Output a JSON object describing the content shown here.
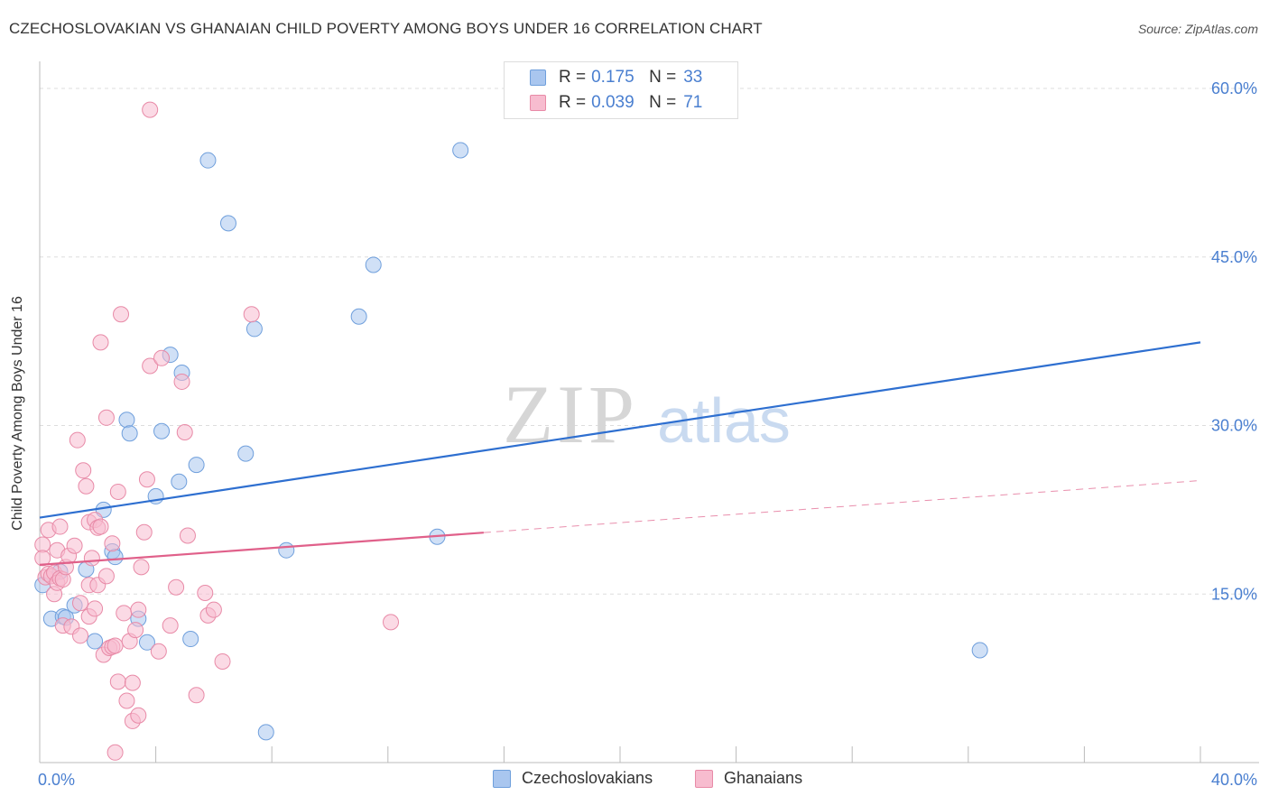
{
  "header": {
    "title": "CZECHOSLOVAKIAN VS GHANAIAN CHILD POVERTY AMONG BOYS UNDER 16 CORRELATION CHART",
    "source": "Source: ZipAtlas.com"
  },
  "watermark": {
    "zip": "ZIP",
    "atlas": "atlas"
  },
  "legend": {
    "rows": [
      {
        "r_label": "R =",
        "r_value": "0.175",
        "n_label": "N =",
        "n_value": "33",
        "color": "#a9c6ef",
        "border": "#6f9fdc"
      },
      {
        "r_label": "R =",
        "r_value": "0.039",
        "n_label": "N =",
        "n_value": "71",
        "color": "#f7bccf",
        "border": "#e88aa7"
      }
    ]
  },
  "bottom_legend": {
    "items": [
      {
        "label": "Czechoslovakians",
        "color": "#a9c6ef",
        "border": "#6f9fdc"
      },
      {
        "label": "Ghanaians",
        "color": "#f7bccf",
        "border": "#e88aa7"
      }
    ]
  },
  "chart_data": {
    "type": "scatter",
    "title": "CZECHOSLOVAKIAN VS GHANAIAN CHILD POVERTY AMONG BOYS UNDER 16 CORRELATION CHART",
    "xlabel": "",
    "ylabel": "Child Poverty Among Boys Under 16",
    "xlim": [
      0,
      40
    ],
    "ylim": [
      0,
      60
    ],
    "x_tick_labels": [
      {
        "value": 0,
        "label": "0.0%"
      },
      {
        "value": 40,
        "label": "40.0%"
      }
    ],
    "y_tick_labels": [
      {
        "value": 15,
        "label": "15.0%"
      },
      {
        "value": 30,
        "label": "30.0%"
      },
      {
        "value": 45,
        "label": "45.0%"
      },
      {
        "value": 60,
        "label": "60.0%"
      }
    ],
    "grid": true,
    "legend_position": "top-center",
    "series": [
      {
        "name": "Czechoslovakians",
        "color": "#6f9fdc",
        "fill": "#a9c6ef",
        "trend": {
          "x": [
            0,
            40
          ],
          "y": [
            21.8,
            37.4
          ],
          "dashed_from": null,
          "line_color": "#2e6fd0"
        },
        "points": [
          [
            0.1,
            15.8
          ],
          [
            0.4,
            12.8
          ],
          [
            0.7,
            17.0
          ],
          [
            0.8,
            13.0
          ],
          [
            0.9,
            12.9
          ],
          [
            1.2,
            14.0
          ],
          [
            1.6,
            17.2
          ],
          [
            1.9,
            10.8
          ],
          [
            2.2,
            22.5
          ],
          [
            2.5,
            18.8
          ],
          [
            2.6,
            18.3
          ],
          [
            3.0,
            30.5
          ],
          [
            3.1,
            29.3
          ],
          [
            3.4,
            12.8
          ],
          [
            3.7,
            10.7
          ],
          [
            4.0,
            23.7
          ],
          [
            4.2,
            29.5
          ],
          [
            4.5,
            36.3
          ],
          [
            4.8,
            25.0
          ],
          [
            4.9,
            34.7
          ],
          [
            5.2,
            11.0
          ],
          [
            5.4,
            26.5
          ],
          [
            5.8,
            53.6
          ],
          [
            6.5,
            48.0
          ],
          [
            7.1,
            27.5
          ],
          [
            7.4,
            38.6
          ],
          [
            7.8,
            2.7
          ],
          [
            8.5,
            18.9
          ],
          [
            11.0,
            39.7
          ],
          [
            11.5,
            44.3
          ],
          [
            13.7,
            20.1
          ],
          [
            14.5,
            54.5
          ],
          [
            32.4,
            10.0
          ]
        ]
      },
      {
        "name": "Ghanaians",
        "color": "#e88aa7",
        "fill": "#f7bccf",
        "trend": {
          "x": [
            0,
            40
          ],
          "y": [
            17.6,
            25.1
          ],
          "dashed_from": 15.3,
          "line_color": "#e0608a"
        },
        "points": [
          [
            0.1,
            19.4
          ],
          [
            0.1,
            18.2
          ],
          [
            0.2,
            16.5
          ],
          [
            0.3,
            16.8
          ],
          [
            0.3,
            20.7
          ],
          [
            0.4,
            16.6
          ],
          [
            0.5,
            16.9
          ],
          [
            0.5,
            15.0
          ],
          [
            0.6,
            16.0
          ],
          [
            0.6,
            18.9
          ],
          [
            0.7,
            16.4
          ],
          [
            0.7,
            21.0
          ],
          [
            0.8,
            12.2
          ],
          [
            0.8,
            16.3
          ],
          [
            0.9,
            17.4
          ],
          [
            1.0,
            18.4
          ],
          [
            1.1,
            12.1
          ],
          [
            1.2,
            19.3
          ],
          [
            1.3,
            28.7
          ],
          [
            1.4,
            11.3
          ],
          [
            1.4,
            14.2
          ],
          [
            1.5,
            26.0
          ],
          [
            1.6,
            24.6
          ],
          [
            1.7,
            15.8
          ],
          [
            1.7,
            13.0
          ],
          [
            1.7,
            21.4
          ],
          [
            1.8,
            18.2
          ],
          [
            1.9,
            21.6
          ],
          [
            1.9,
            13.7
          ],
          [
            2.0,
            15.8
          ],
          [
            2.0,
            20.9
          ],
          [
            2.1,
            21.0
          ],
          [
            2.1,
            37.4
          ],
          [
            2.2,
            9.6
          ],
          [
            2.3,
            30.7
          ],
          [
            2.3,
            16.6
          ],
          [
            2.4,
            10.2
          ],
          [
            2.5,
            19.5
          ],
          [
            2.5,
            10.3
          ],
          [
            2.6,
            0.9
          ],
          [
            2.6,
            10.4
          ],
          [
            2.7,
            24.1
          ],
          [
            2.7,
            7.2
          ],
          [
            2.8,
            39.9
          ],
          [
            2.9,
            13.3
          ],
          [
            3.0,
            5.5
          ],
          [
            3.1,
            10.8
          ],
          [
            3.2,
            7.1
          ],
          [
            3.2,
            3.7
          ],
          [
            3.3,
            11.8
          ],
          [
            3.4,
            13.6
          ],
          [
            3.4,
            4.2
          ],
          [
            3.5,
            17.4
          ],
          [
            3.6,
            20.5
          ],
          [
            3.7,
            25.2
          ],
          [
            3.8,
            35.3
          ],
          [
            3.8,
            58.1
          ],
          [
            4.1,
            9.9
          ],
          [
            4.2,
            36.0
          ],
          [
            4.5,
            12.2
          ],
          [
            4.7,
            15.6
          ],
          [
            4.9,
            33.9
          ],
          [
            5.0,
            29.4
          ],
          [
            5.1,
            20.2
          ],
          [
            5.4,
            6.0
          ],
          [
            5.7,
            15.1
          ],
          [
            5.8,
            13.1
          ],
          [
            6.0,
            13.6
          ],
          [
            6.3,
            9.0
          ],
          [
            7.3,
            39.9
          ],
          [
            12.1,
            12.5
          ]
        ]
      }
    ]
  }
}
